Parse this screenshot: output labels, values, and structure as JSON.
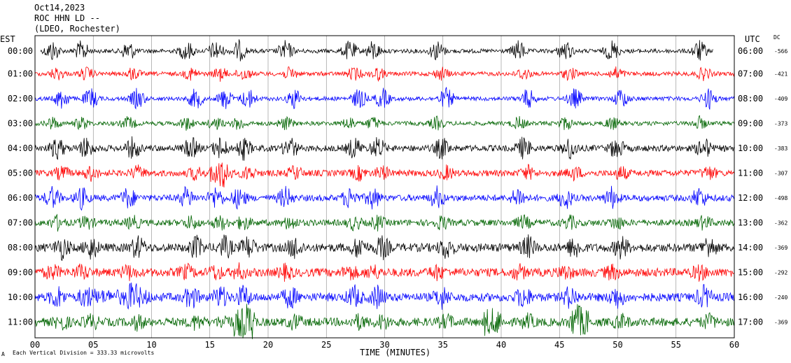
{
  "header": {
    "line1": "Oct14,2023",
    "line2": "ROC HHN LD --",
    "line3": "(LDEO, Rochester)"
  },
  "left_axis_title": "EST",
  "right_axis_title": "UTC",
  "dc_title": "DC",
  "footer_note": "Each Vertical Division =  333.33 microvolts",
  "footer_mark": "A",
  "colors": {
    "black": "#000000",
    "red": "#ff0000",
    "blue": "#0000ff",
    "green": "#006400"
  },
  "chart_data": {
    "type": "line",
    "xlabel": "TIME (MINUTES)",
    "xlim": [
      0,
      60
    ],
    "xticks": [
      "00",
      "05",
      "10",
      "15",
      "20",
      "25",
      "30",
      "35",
      "40",
      "45",
      "50",
      "55",
      "60"
    ],
    "rows": [
      {
        "est": "00:00",
        "utc": "06:00",
        "dc": "-566",
        "color": "black",
        "end_minute": 59
      },
      {
        "est": "01:00",
        "utc": "07:00",
        "dc": "-421",
        "color": "red",
        "end_minute": 60
      },
      {
        "est": "02:00",
        "utc": "08:00",
        "dc": "-409",
        "color": "blue",
        "end_minute": 60
      },
      {
        "est": "03:00",
        "utc": "09:00",
        "dc": "-373",
        "color": "green",
        "end_minute": 60
      },
      {
        "est": "04:00",
        "utc": "10:00",
        "dc": "-383",
        "color": "black",
        "end_minute": 60
      },
      {
        "est": "05:00",
        "utc": "11:00",
        "dc": "-307",
        "color": "red",
        "end_minute": 60
      },
      {
        "est": "06:00",
        "utc": "12:00",
        "dc": "-498",
        "color": "blue",
        "end_minute": 60
      },
      {
        "est": "07:00",
        "utc": "13:00",
        "dc": "-362",
        "color": "green",
        "end_minute": 60
      },
      {
        "est": "08:00",
        "utc": "14:00",
        "dc": "-369",
        "color": "black",
        "end_minute": 60
      },
      {
        "est": "09:00",
        "utc": "15:00",
        "dc": "-292",
        "color": "red",
        "end_minute": 60
      },
      {
        "est": "10:00",
        "utc": "16:00",
        "dc": "-240",
        "color": "blue",
        "end_minute": 60
      },
      {
        "est": "11:00",
        "utc": "17:00",
        "dc": "-369",
        "color": "green",
        "end_minute": 60
      }
    ],
    "event_minutes": [
      1.5,
      4,
      8,
      13,
      15.5,
      17.5,
      21.5,
      27,
      29,
      34.5,
      41.5,
      45.5,
      49.5,
      57
    ]
  }
}
